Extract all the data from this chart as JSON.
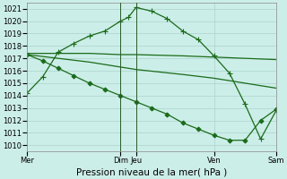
{
  "background_color": "#cceee8",
  "grid_color": "#aad4cc",
  "line_color": "#1a6b1a",
  "title": "Pression niveau de la mer( hPa )",
  "ylim": [
    1009.5,
    1021.5
  ],
  "yticks": [
    1010,
    1011,
    1012,
    1013,
    1014,
    1015,
    1016,
    1017,
    1018,
    1019,
    1020,
    1021
  ],
  "xlim": [
    0,
    8
  ],
  "xtick_positions": [
    0,
    3,
    3.5,
    6,
    8
  ],
  "xtick_labels": [
    "Mer",
    "Dim",
    "Jeu",
    "Ven",
    "Sam"
  ],
  "vlines_x": [
    3,
    3.5
  ],
  "lines": [
    {
      "x": [
        0,
        0.5,
        1.0,
        1.5,
        2.0,
        2.5,
        3.0,
        3.25,
        3.5,
        4.0,
        4.5,
        5.0,
        5.5,
        6.0,
        6.5,
        7.0,
        7.5,
        8.0
      ],
      "y": [
        1014.2,
        1015.5,
        1017.5,
        1018.2,
        1018.8,
        1019.2,
        1020.0,
        1020.3,
        1021.1,
        1020.8,
        1020.2,
        1019.2,
        1018.5,
        1017.2,
        1015.8,
        1013.3,
        1010.5,
        1012.8
      ],
      "marker": "+",
      "markersize": 4,
      "linewidth": 0.9
    },
    {
      "x": [
        0,
        1.0,
        2.0,
        3.0,
        3.5,
        5.0,
        6.0,
        7.0,
        8.0
      ],
      "y": [
        1017.4,
        1017.4,
        1017.4,
        1017.3,
        1017.3,
        1017.2,
        1017.1,
        1017.0,
        1016.9
      ],
      "marker": null,
      "markersize": 0,
      "linewidth": 0.9
    },
    {
      "x": [
        0,
        1.0,
        2.0,
        3.0,
        3.5,
        5.0,
        6.0,
        7.0,
        8.0
      ],
      "y": [
        1017.3,
        1017.0,
        1016.7,
        1016.3,
        1016.1,
        1015.7,
        1015.4,
        1015.0,
        1014.6
      ],
      "marker": null,
      "markersize": 0,
      "linewidth": 0.9
    },
    {
      "x": [
        0,
        0.5,
        1.0,
        1.5,
        2.0,
        2.5,
        3.0,
        3.5,
        4.0,
        4.5,
        5.0,
        5.5,
        6.0,
        6.5,
        7.0,
        7.5,
        8.0
      ],
      "y": [
        1017.3,
        1016.8,
        1016.2,
        1015.6,
        1015.0,
        1014.5,
        1014.0,
        1013.5,
        1013.0,
        1012.5,
        1011.8,
        1011.3,
        1010.8,
        1010.4,
        1010.4,
        1012.0,
        1012.9
      ],
      "marker": "D",
      "markersize": 2.5,
      "linewidth": 0.9
    }
  ],
  "tick_fontsize": 6,
  "xlabel_fontsize": 7.5
}
